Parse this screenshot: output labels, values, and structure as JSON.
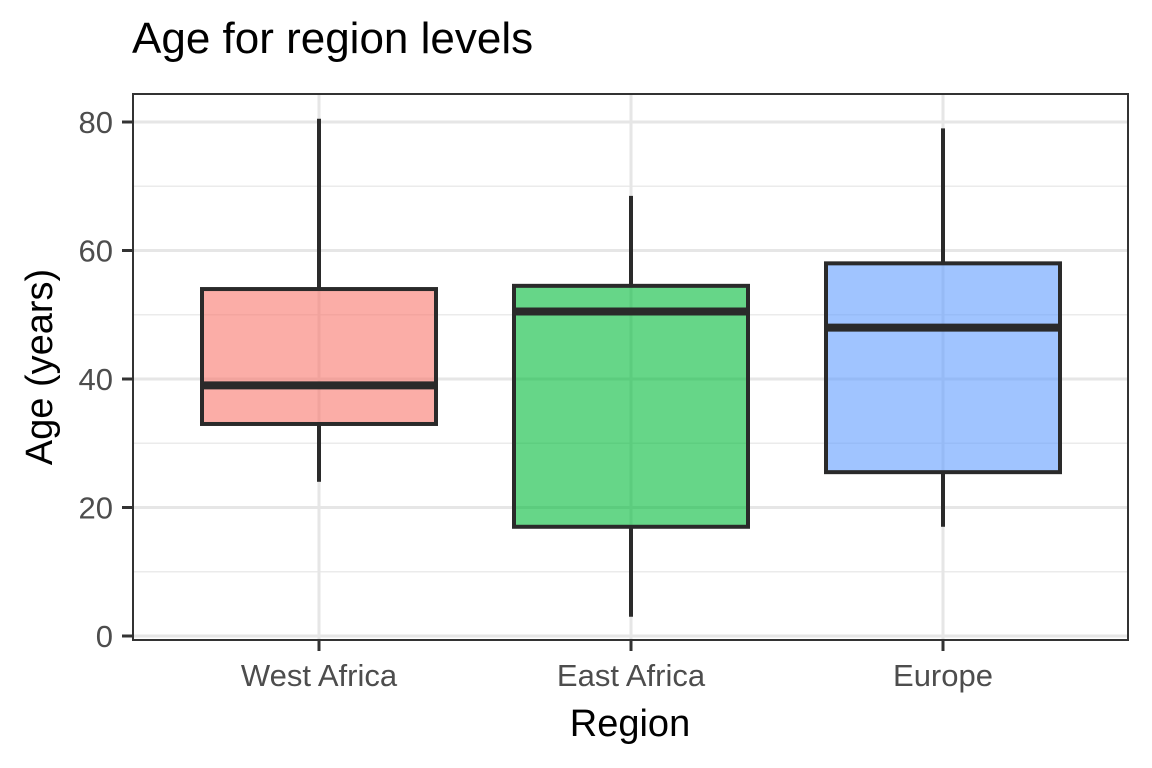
{
  "chart_data": {
    "type": "boxplot",
    "title": "Age for region levels",
    "xlabel": "Region",
    "ylabel": "Age (years)",
    "ylim": [
      0,
      84
    ],
    "yticks": [
      0,
      20,
      40,
      60,
      80
    ],
    "categories": [
      "West Africa",
      "East Africa",
      "Europe"
    ],
    "boxes": [
      {
        "category": "West Africa",
        "min": 24,
        "q1": 33,
        "median": 39,
        "q3": 54,
        "max": 80.5,
        "color": "#F8766D"
      },
      {
        "category": "East Africa",
        "min": 3,
        "q1": 17,
        "median": 50.5,
        "q3": 54.5,
        "max": 68.5,
        "color": "#00BA38"
      },
      {
        "category": "Europe",
        "min": 17,
        "q1": 25.5,
        "median": 48,
        "q3": 58,
        "max": 79,
        "color": "#619CFF"
      }
    ],
    "grid": true,
    "legend": "none"
  }
}
